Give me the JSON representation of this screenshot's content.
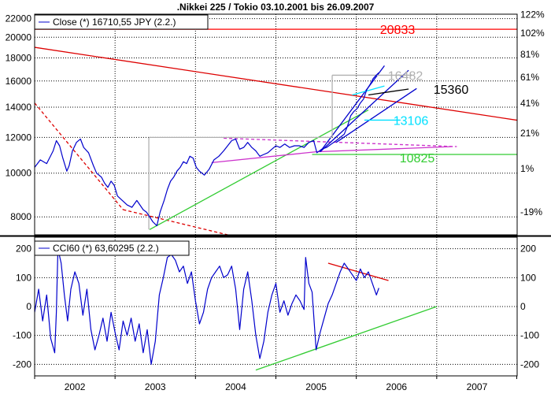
{
  "chart_data": [
    {
      "type": "line",
      "title": ".Nikkei 225 / Tokio 03.10.2001 bis 26.09.2007",
      "legend": {
        "label": "Close (*) 16710,55 JPY (2.2.)",
        "placement": "top-left"
      },
      "y_scale": "log",
      "ylim": [
        7300,
        22500
      ],
      "y_ticks": [
        8000,
        10000,
        12000,
        14000,
        16000,
        18000,
        20000,
        22000
      ],
      "y_ticks_right": [
        {
          "label": "122%",
          "value": 22450
        },
        {
          "label": "102%",
          "value": 20428
        },
        {
          "label": "81%",
          "value": 18324
        },
        {
          "label": "61%",
          "value": 16299
        },
        {
          "label": "41%",
          "value": 14275
        },
        {
          "label": "21%",
          "value": 12250
        },
        {
          "label": "1%",
          "value": 10225
        },
        {
          "label": "-19%",
          "value": 8200
        }
      ],
      "x_range": [
        2001.75,
        2007.75
      ],
      "x_ticks": [
        "2002",
        "2003",
        "2004",
        "2005",
        "2006",
        "2007"
      ],
      "grid": true,
      "series": [
        {
          "color": "#0000cc",
          "points": [
            [
              2001.75,
              10300
            ],
            [
              2001.82,
              10700
            ],
            [
              2001.9,
              10500
            ],
            [
              2001.98,
              11200
            ],
            [
              2002.02,
              11800
            ],
            [
              2002.06,
              11500
            ],
            [
              2002.1,
              10800
            ],
            [
              2002.15,
              10100
            ],
            [
              2002.18,
              10400
            ],
            [
              2002.22,
              11200
            ],
            [
              2002.27,
              11700
            ],
            [
              2002.32,
              11900
            ],
            [
              2002.36,
              11400
            ],
            [
              2002.42,
              11100
            ],
            [
              2002.48,
              10400
            ],
            [
              2002.52,
              10000
            ],
            [
              2002.58,
              9800
            ],
            [
              2002.62,
              9500
            ],
            [
              2002.66,
              9300
            ],
            [
              2002.7,
              9600
            ],
            [
              2002.74,
              9400
            ],
            [
              2002.78,
              8900
            ],
            [
              2002.84,
              8700
            ],
            [
              2002.9,
              8500
            ],
            [
              2002.96,
              8400
            ],
            [
              2003.02,
              8700
            ],
            [
              2003.06,
              8500
            ],
            [
              2003.1,
              8300
            ],
            [
              2003.14,
              8200
            ],
            [
              2003.18,
              8000
            ],
            [
              2003.22,
              7800
            ],
            [
              2003.27,
              7650
            ],
            [
              2003.31,
              8200
            ],
            [
              2003.36,
              8700
            ],
            [
              2003.4,
              9200
            ],
            [
              2003.44,
              9600
            ],
            [
              2003.48,
              9800
            ],
            [
              2003.52,
              10100
            ],
            [
              2003.56,
              10300
            ],
            [
              2003.6,
              10600
            ],
            [
              2003.64,
              10500
            ],
            [
              2003.68,
              10900
            ],
            [
              2003.72,
              10800
            ],
            [
              2003.76,
              10300
            ],
            [
              2003.8,
              10100
            ],
            [
              2003.86,
              9900
            ],
            [
              2003.92,
              10200
            ],
            [
              2003.98,
              10700
            ],
            [
              2004.04,
              10900
            ],
            [
              2004.1,
              11200
            ],
            [
              2004.15,
              11500
            ],
            [
              2004.2,
              11800
            ],
            [
              2004.25,
              11900
            ],
            [
              2004.3,
              11300
            ],
            [
              2004.35,
              11400
            ],
            [
              2004.4,
              11700
            ],
            [
              2004.45,
              11400
            ],
            [
              2004.5,
              11200
            ],
            [
              2004.55,
              10900
            ],
            [
              2004.6,
              11000
            ],
            [
              2004.65,
              11100
            ],
            [
              2004.7,
              11300
            ],
            [
              2004.75,
              11500
            ],
            [
              2004.8,
              11400
            ],
            [
              2004.86,
              11600
            ],
            [
              2004.92,
              11400
            ],
            [
              2004.98,
              11500
            ],
            [
              2005.04,
              11500
            ],
            [
              2005.1,
              11400
            ],
            [
              2005.16,
              11700
            ],
            [
              2005.22,
              11800
            ],
            [
              2005.26,
              11100
            ],
            [
              2005.32,
              11300
            ],
            [
              2005.38,
              11400
            ],
            [
              2005.44,
              11600
            ],
            [
              2005.5,
              11800
            ],
            [
              2005.55,
              12000
            ],
            [
              2005.6,
              12200
            ],
            [
              2005.64,
              12700
            ],
            [
              2005.68,
              13400
            ],
            [
              2005.72,
              13700
            ],
            [
              2005.76,
              13900
            ],
            [
              2005.8,
              14300
            ],
            [
              2005.84,
              14600
            ],
            [
              2005.88,
              15300
            ],
            [
              2005.92,
              15700
            ],
            [
              2005.96,
              16200
            ],
            [
              2006.0,
              16500
            ],
            [
              2006.03,
              16700
            ]
          ]
        }
      ],
      "annotations": [
        {
          "label": "20833",
          "value": 20833,
          "color": "#ff0000"
        },
        {
          "label": "16482",
          "value": 16482,
          "color": "#b0b0b0"
        },
        {
          "label": "15360",
          "value": 15360,
          "color": "#000000"
        },
        {
          "label": "13106",
          "value": 13106,
          "color": "#00e0ff"
        },
        {
          "label": "10825",
          "value": 10825,
          "color": "#33cc33"
        }
      ],
      "trendlines": [
        {
          "color": "#dd0000",
          "dashed": false,
          "from": [
            2001.75,
            19000
          ],
          "to": [
            2007.75,
            13100
          ]
        },
        {
          "color": "#dd0000",
          "dashed": true,
          "from": [
            2001.75,
            14300
          ],
          "to": [
            2002.85,
            8300
          ]
        },
        {
          "color": "#dd0000",
          "dashed": true,
          "from": [
            2002.85,
            8300
          ],
          "to": [
            2004.15,
            7300
          ]
        },
        {
          "color": "#33cc33",
          "dashed": false,
          "from": [
            2003.18,
            7500
          ],
          "to": [
            2005.9,
            13800
          ]
        },
        {
          "color": "#33cc33",
          "dashed": false,
          "from": [
            2005.2,
            11000
          ],
          "to": [
            2007.75,
            11000
          ]
        },
        {
          "color": "#cc33cc",
          "dashed": false,
          "from": [
            2003.95,
            10550
          ],
          "to": [
            2005.25,
            11150
          ]
        },
        {
          "color": "#cc33cc",
          "dashed": false,
          "from": [
            2005.25,
            11150
          ],
          "to": [
            2006.95,
            11450
          ]
        },
        {
          "color": "#cc33cc",
          "dashed": true,
          "from": [
            2004.1,
            11950
          ],
          "to": [
            2007.0,
            11450
          ]
        },
        {
          "color": "#0000cc",
          "dashed": false,
          "from": [
            2005.3,
            11150
          ],
          "to": [
            2006.1,
            17300
          ]
        },
        {
          "color": "#0000cc",
          "dashed": false,
          "from": [
            2005.3,
            11150
          ],
          "to": [
            2006.4,
            16900
          ]
        },
        {
          "color": "#0000cc",
          "dashed": false,
          "from": [
            2005.5,
            11700
          ],
          "to": [
            2006.5,
            15400
          ]
        },
        {
          "color": "#00e0ff",
          "dashed": false,
          "from": [
            2005.85,
            13106
          ],
          "to": [
            2006.3,
            13106
          ]
        },
        {
          "color": "#00e0ff",
          "dashed": false,
          "from": [
            2005.7,
            14900
          ],
          "to": [
            2006.1,
            15600
          ]
        },
        {
          "color": "#b0b0b0",
          "dashed": false,
          "from": [
            2003.17,
            12000
          ],
          "to": [
            2005.45,
            12000
          ]
        },
        {
          "color": "#b0b0b0",
          "dashed": false,
          "from": [
            2003.17,
            7500
          ],
          "to": [
            2003.17,
            12000
          ]
        },
        {
          "color": "#b0b0b0",
          "dashed": false,
          "from": [
            2005.45,
            12000
          ],
          "to": [
            2005.45,
            16482
          ]
        },
        {
          "color": "#b0b0b0",
          "dashed": false,
          "from": [
            2005.45,
            16482
          ],
          "to": [
            2006.45,
            16482
          ]
        },
        {
          "color": "#000000",
          "dashed": false,
          "from": [
            2005.9,
            14900
          ],
          "to": [
            2006.4,
            15360
          ]
        }
      ]
    },
    {
      "type": "line",
      "legend": {
        "label": "CCI60 (*) 63,60295 (2.2.)",
        "placement": "top-left"
      },
      "ylim": [
        -240,
        240
      ],
      "y_ticks": [
        -200,
        -100,
        0,
        100,
        200
      ],
      "x_range": [
        2001.75,
        2007.75
      ],
      "grid": true,
      "series": [
        {
          "color": "#0000cc",
          "points": [
            [
              2001.75,
              -20
            ],
            [
              2001.8,
              60
            ],
            [
              2001.85,
              -50
            ],
            [
              2001.9,
              40
            ],
            [
              2001.95,
              -110
            ],
            [
              2002.0,
              -160
            ],
            [
              2002.02,
              -20
            ],
            [
              2002.04,
              200
            ],
            [
              2002.08,
              150
            ],
            [
              2002.12,
              40
            ],
            [
              2002.16,
              -50
            ],
            [
              2002.2,
              60
            ],
            [
              2002.25,
              120
            ],
            [
              2002.3,
              80
            ],
            [
              2002.35,
              -30
            ],
            [
              2002.4,
              60
            ],
            [
              2002.45,
              -80
            ],
            [
              2002.5,
              -150
            ],
            [
              2002.55,
              -100
            ],
            [
              2002.6,
              -40
            ],
            [
              2002.65,
              -120
            ],
            [
              2002.7,
              -20
            ],
            [
              2002.75,
              -90
            ],
            [
              2002.8,
              -150
            ],
            [
              2002.85,
              -50
            ],
            [
              2002.9,
              -100
            ],
            [
              2002.95,
              -40
            ],
            [
              2003.0,
              -120
            ],
            [
              2003.05,
              -60
            ],
            [
              2003.1,
              -160
            ],
            [
              2003.15,
              -80
            ],
            [
              2003.2,
              -200
            ],
            [
              2003.25,
              -120
            ],
            [
              2003.3,
              40
            ],
            [
              2003.35,
              100
            ],
            [
              2003.4,
              170
            ],
            [
              2003.45,
              180
            ],
            [
              2003.5,
              160
            ],
            [
              2003.55,
              120
            ],
            [
              2003.6,
              140
            ],
            [
              2003.65,
              80
            ],
            [
              2003.7,
              120
            ],
            [
              2003.75,
              20
            ],
            [
              2003.8,
              -60
            ],
            [
              2003.85,
              -20
            ],
            [
              2003.9,
              60
            ],
            [
              2003.95,
              100
            ],
            [
              2004.0,
              120
            ],
            [
              2004.05,
              140
            ],
            [
              2004.1,
              100
            ],
            [
              2004.15,
              110
            ],
            [
              2004.2,
              140
            ],
            [
              2004.25,
              60
            ],
            [
              2004.3,
              -80
            ],
            [
              2004.35,
              60
            ],
            [
              2004.4,
              120
            ],
            [
              2004.45,
              20
            ],
            [
              2004.5,
              -100
            ],
            [
              2004.55,
              -180
            ],
            [
              2004.6,
              -120
            ],
            [
              2004.65,
              -20
            ],
            [
              2004.7,
              40
            ],
            [
              2004.75,
              80
            ],
            [
              2004.8,
              -20
            ],
            [
              2004.85,
              20
            ],
            [
              2004.9,
              -30
            ],
            [
              2004.95,
              10
            ],
            [
              2005.0,
              40
            ],
            [
              2005.05,
              20
            ],
            [
              2005.1,
              -10
            ],
            [
              2005.12,
              170
            ],
            [
              2005.16,
              80
            ],
            [
              2005.2,
              50
            ],
            [
              2005.25,
              -150
            ],
            [
              2005.3,
              -90
            ],
            [
              2005.35,
              -40
            ],
            [
              2005.4,
              10
            ],
            [
              2005.45,
              40
            ],
            [
              2005.5,
              80
            ],
            [
              2005.55,
              120
            ],
            [
              2005.6,
              150
            ],
            [
              2005.65,
              130
            ],
            [
              2005.7,
              110
            ],
            [
              2005.75,
              90
            ],
            [
              2005.8,
              130
            ],
            [
              2005.85,
              100
            ],
            [
              2005.9,
              120
            ],
            [
              2005.95,
              80
            ],
            [
              2006.0,
              40
            ],
            [
              2006.03,
              64
            ]
          ]
        }
      ],
      "trendlines": [
        {
          "color": "#dd0000",
          "dashed": false,
          "from": [
            2005.4,
            150
          ],
          "to": [
            2006.15,
            90
          ]
        },
        {
          "color": "#33cc33",
          "dashed": false,
          "from": [
            2004.5,
            -220
          ],
          "to": [
            2006.75,
            0
          ]
        }
      ]
    }
  ]
}
